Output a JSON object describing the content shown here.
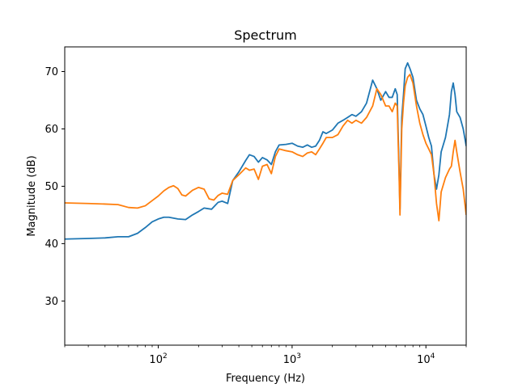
{
  "chart_data": {
    "type": "line",
    "title": "Spectrum",
    "xlabel": "Frequency (Hz)",
    "ylabel": "Magnitude (dB)",
    "xscale": "log",
    "xlim": [
      20,
      20000
    ],
    "ylim": [
      22.3,
      74.3
    ],
    "yticks": [
      {
        "value": 30,
        "label": "30"
      },
      {
        "value": 40,
        "label": "40"
      },
      {
        "value": 50,
        "label": "50"
      },
      {
        "value": 60,
        "label": "60"
      },
      {
        "value": 70,
        "label": "70"
      }
    ],
    "xticks": [
      {
        "value": 100,
        "base": "10",
        "exp": "2"
      },
      {
        "value": 1000,
        "base": "10",
        "exp": "3"
      },
      {
        "value": 10000,
        "base": "10",
        "exp": "4"
      }
    ],
    "grid": false,
    "series": [
      {
        "color": "#1f77b4",
        "x": [
          20,
          30,
          40,
          50,
          60,
          70,
          80,
          90,
          100,
          110,
          120,
          140,
          160,
          180,
          200,
          220,
          250,
          280,
          300,
          330,
          360,
          400,
          450,
          480,
          520,
          560,
          600,
          650,
          700,
          750,
          800,
          900,
          1000,
          1100,
          1200,
          1300,
          1400,
          1500,
          1600,
          1700,
          1800,
          2000,
          2200,
          2400,
          2600,
          2800,
          3000,
          3300,
          3600,
          4000,
          4300,
          4600,
          5000,
          5300,
          5600,
          5900,
          6100,
          6300,
          6400,
          6600,
          6800,
          7000,
          7300,
          7600,
          8000,
          8500,
          9000,
          9500,
          10000,
          10500,
          11000,
          11500,
          12000,
          12500,
          13000,
          14000,
          15000,
          15500,
          16000,
          16500,
          17000,
          18000,
          19000,
          20000
        ],
        "y": [
          40.8,
          40.9,
          41.0,
          41.2,
          41.2,
          41.8,
          42.8,
          43.8,
          44.3,
          44.6,
          44.6,
          44.3,
          44.2,
          45.0,
          45.6,
          46.2,
          46.0,
          47.2,
          47.4,
          47.0,
          51.0,
          52.5,
          54.5,
          55.5,
          55.2,
          54.2,
          55.0,
          54.6,
          53.8,
          56.0,
          57.2,
          57.3,
          57.5,
          57.0,
          56.8,
          57.2,
          56.8,
          57.0,
          58.0,
          59.5,
          59.2,
          59.8,
          61.0,
          61.5,
          62.0,
          62.5,
          62.2,
          63.0,
          64.5,
          68.5,
          67.0,
          65.0,
          66.5,
          65.5,
          65.5,
          67.0,
          66.0,
          53.0,
          46.0,
          62.0,
          66.0,
          70.5,
          71.5,
          70.5,
          69.0,
          65.0,
          63.5,
          62.5,
          60.5,
          58.5,
          57.0,
          52.0,
          49.5,
          52.0,
          56.0,
          58.5,
          62.5,
          66.5,
          68.0,
          66.0,
          63.0,
          62.0,
          60.0,
          57.0
        ]
      },
      {
        "color": "#ff7f0e",
        "x": [
          20,
          30,
          40,
          50,
          60,
          70,
          80,
          90,
          100,
          110,
          120,
          130,
          140,
          150,
          160,
          180,
          200,
          220,
          240,
          260,
          280,
          300,
          330,
          360,
          400,
          450,
          480,
          520,
          560,
          600,
          650,
          700,
          750,
          800,
          900,
          1000,
          1100,
          1200,
          1300,
          1400,
          1500,
          1600,
          1700,
          1800,
          2000,
          2200,
          2400,
          2600,
          2800,
          3000,
          3300,
          3600,
          4000,
          4300,
          4600,
          5000,
          5300,
          5600,
          5900,
          6100,
          6300,
          6400,
          6600,
          6800,
          7000,
          7300,
          7600,
          8000,
          8500,
          9000,
          9500,
          10000,
          10500,
          11000,
          11500,
          12000,
          12500,
          13000,
          14000,
          15000,
          15500,
          16000,
          16500,
          17000,
          18000,
          19000,
          20000
        ],
        "y": [
          47.1,
          47.0,
          46.9,
          46.8,
          46.3,
          46.2,
          46.6,
          47.5,
          48.3,
          49.2,
          49.8,
          50.1,
          49.6,
          48.5,
          48.3,
          49.3,
          49.8,
          49.5,
          47.8,
          47.6,
          48.4,
          48.8,
          48.6,
          51.0,
          52.0,
          53.2,
          52.8,
          53.0,
          51.2,
          53.5,
          53.8,
          52.2,
          55.2,
          56.5,
          56.2,
          56.0,
          55.5,
          55.2,
          55.8,
          56.0,
          55.5,
          56.5,
          57.5,
          58.5,
          58.5,
          59.0,
          60.5,
          61.5,
          61.0,
          61.5,
          61.0,
          62.0,
          64.0,
          67.0,
          66.0,
          64.0,
          64.0,
          63.0,
          64.5,
          64.0,
          52.0,
          45.0,
          60.0,
          64.5,
          67.5,
          69.0,
          69.5,
          68.0,
          64.0,
          61.0,
          59.0,
          57.5,
          56.5,
          55.5,
          52.0,
          47.0,
          44.0,
          49.0,
          51.5,
          53.0,
          53.5,
          56.0,
          58.0,
          56.0,
          52.5,
          49.5,
          45.0
        ]
      }
    ]
  }
}
